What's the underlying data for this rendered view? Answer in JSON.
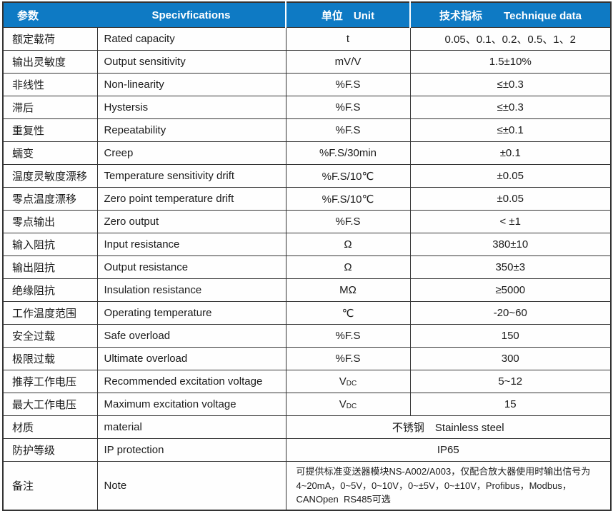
{
  "colors": {
    "header_bg": "#0e7ac4",
    "header_text": "#ffffff",
    "border": "#333333",
    "body_text": "#1a1a1a"
  },
  "header": {
    "col_param": "参数",
    "col_spec": "Specivfications",
    "col_unit": "单位　Unit",
    "col_data": "技术指标　　Technique data"
  },
  "rows": [
    {
      "param": "额定载荷",
      "spec": "Rated capacity",
      "unit": "t",
      "value": "0.05、0.1、0.2、0.5、1、2"
    },
    {
      "param": "输出灵敏度",
      "spec": "Output sensitivity",
      "unit": "mV/V",
      "value": "1.5±10%"
    },
    {
      "param": "非线性",
      "spec": "Non-linearity",
      "unit": "%F.S",
      "value": "≤±0.3"
    },
    {
      "param": "滞后",
      "spec": "Hystersis",
      "unit": "%F.S",
      "value": "≤±0.3"
    },
    {
      "param": "重复性",
      "spec": "Repeatability",
      "unit": "%F.S",
      "value": "≤±0.1"
    },
    {
      "param": "蠕变",
      "spec": "Creep",
      "unit": "%F.S/30min",
      "value": "±0.1"
    },
    {
      "param": "温度灵敏度漂移",
      "spec": "Temperature sensitivity drift",
      "unit": "%F.S/10℃",
      "value": "±0.05"
    },
    {
      "param": "零点温度漂移",
      "spec": "Zero point temperature drift",
      "unit": "%F.S/10℃",
      "value": "±0.05"
    },
    {
      "param": "零点输出",
      "spec": "Zero output",
      "unit": "%F.S",
      "value": "< ±1"
    },
    {
      "param": "输入阻抗",
      "spec": "Input resistance",
      "unit": "Ω",
      "value": "380±10"
    },
    {
      "param": "输出阻抗",
      "spec": "Output resistance",
      "unit": "Ω",
      "value": "350±3"
    },
    {
      "param": "绝缘阻抗",
      "spec": "Insulation resistance",
      "unit": "MΩ",
      "value": "≥5000"
    },
    {
      "param": "工作温度范围",
      "spec": "Operating temperature",
      "unit": "℃",
      "value": "-20~60"
    },
    {
      "param": "安全过载",
      "spec": "Safe overload",
      "unit": "%F.S",
      "value": "150"
    },
    {
      "param": "极限过载",
      "spec": "Ultimate overload",
      "unit": "%F.S",
      "value": "300"
    },
    {
      "param": "推荐工作电压",
      "spec": "Recommended excitation voltage",
      "unit": "V",
      "unit_sub": "DC",
      "value": "5~12"
    },
    {
      "param": "最大工作电压",
      "spec": "Maximum excitation voltage",
      "unit": "V",
      "unit_sub": "DC",
      "value": "15"
    },
    {
      "param": "材质",
      "spec": "material",
      "merged": true,
      "value": "不锈钢　Stainless steel"
    },
    {
      "param": "防护等级",
      "spec": "IP protection",
      "merged": true,
      "value": "IP65"
    },
    {
      "param": "备注",
      "spec": "Note",
      "merged": true,
      "align": "left",
      "small": true,
      "value_lines": [
        "可提供标准变送器模块NS-A002/A003，仅配合放大器使用时输出信号为",
        "4~20mA，0~5V，0~10V，0~±5V，0~±10V，Profibus，Modbus，",
        "CANOpen  RS485可选"
      ]
    }
  ]
}
